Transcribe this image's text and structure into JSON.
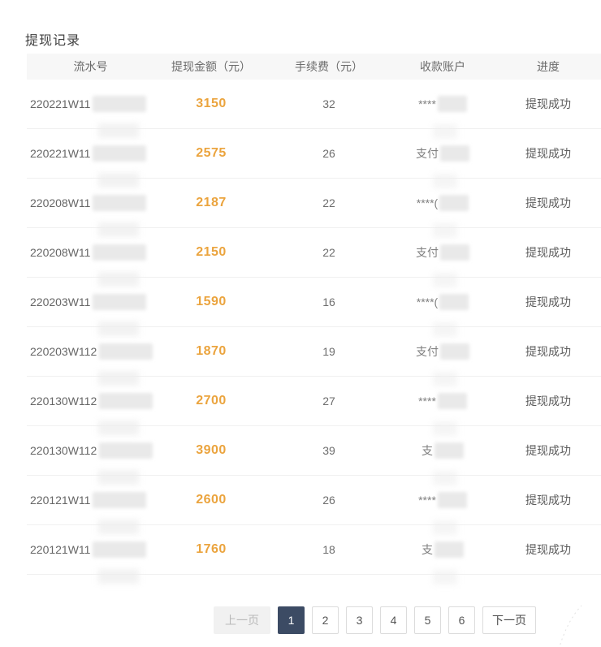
{
  "page": {
    "title": "提现记录"
  },
  "table": {
    "columns": [
      "流水号",
      "提现金额（元）",
      "手续费（元）",
      "收款账户",
      "进度"
    ],
    "rows": [
      {
        "serial_prefix": "220221W11",
        "amount": "3150",
        "fee": "32",
        "account_prefix": "****",
        "status": "提现成功"
      },
      {
        "serial_prefix": "220221W11",
        "amount": "2575",
        "fee": "26",
        "account_prefix": "支付",
        "status": "提现成功"
      },
      {
        "serial_prefix": "220208W11",
        "amount": "2187",
        "fee": "22",
        "account_prefix": "****(",
        "status": "提现成功"
      },
      {
        "serial_prefix": "220208W11",
        "amount": "2150",
        "fee": "22",
        "account_prefix": "支付",
        "status": "提现成功"
      },
      {
        "serial_prefix": "220203W11",
        "amount": "1590",
        "fee": "16",
        "account_prefix": "****(",
        "status": "提现成功"
      },
      {
        "serial_prefix": "220203W112",
        "amount": "1870",
        "fee": "19",
        "account_prefix": "支付",
        "status": "提现成功"
      },
      {
        "serial_prefix": "220130W112",
        "amount": "2700",
        "fee": "27",
        "account_prefix": "****",
        "status": "提现成功"
      },
      {
        "serial_prefix": "220130W112",
        "amount": "3900",
        "fee": "39",
        "account_prefix": "支",
        "status": "提现成功"
      },
      {
        "serial_prefix": "220121W11",
        "amount": "2600",
        "fee": "26",
        "account_prefix": "****",
        "status": "提现成功"
      },
      {
        "serial_prefix": "220121W11",
        "amount": "1760",
        "fee": "18",
        "account_prefix": "支",
        "status": "提现成功"
      }
    ]
  },
  "pagination": {
    "prev_label": "上一页",
    "next_label": "下一页",
    "pages": [
      "1",
      "2",
      "3",
      "4",
      "5",
      "6"
    ],
    "active_index": 0
  },
  "colors": {
    "amount": "#eba43e",
    "active-page": "#3c4b64",
    "status-text": "#5c5c5c",
    "header-bg": "#f7f7f7"
  }
}
